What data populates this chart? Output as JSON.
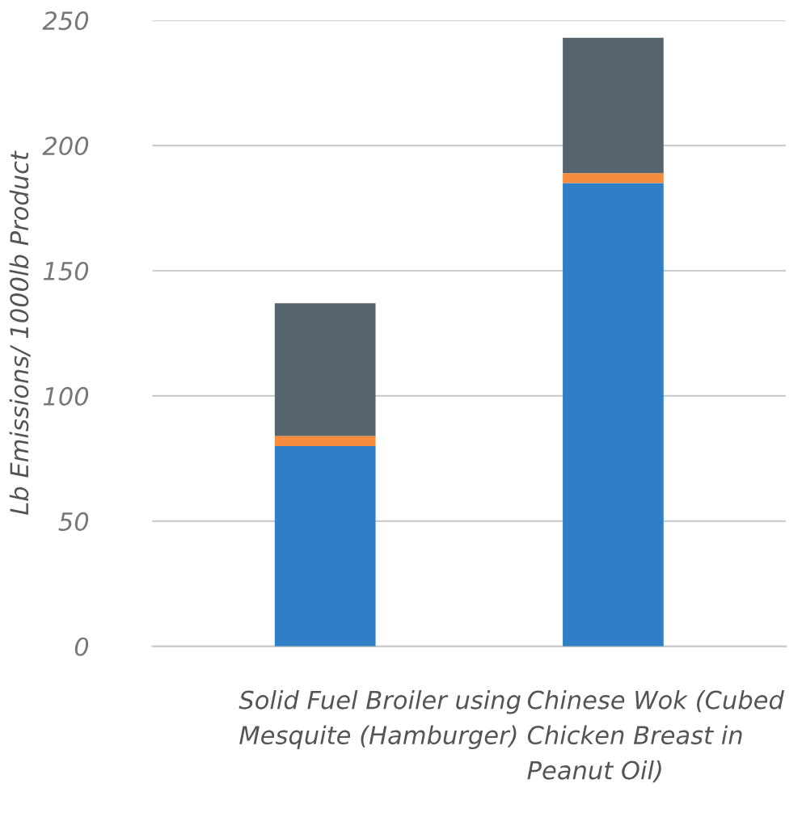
{
  "chart_data": {
    "type": "bar",
    "stacked": true,
    "ylabel": "Lb Emissions/ 1000lb Product",
    "categories": [
      "Solid Fuel Broiler using Mesquite (Hamburger)",
      "Chinese Wok (Cubed Chicken Breast in Peanut Oil)"
    ],
    "series": [
      {
        "color": "#2e7fc6",
        "values": [
          80,
          185
        ]
      },
      {
        "color": "#f58b3c",
        "values": [
          4,
          4
        ]
      },
      {
        "color": "#56646e",
        "values": [
          53,
          54
        ]
      }
    ],
    "ylim": [
      0,
      250
    ],
    "yticks": [
      0,
      50,
      100,
      150,
      200,
      250
    ],
    "grid": "y"
  }
}
